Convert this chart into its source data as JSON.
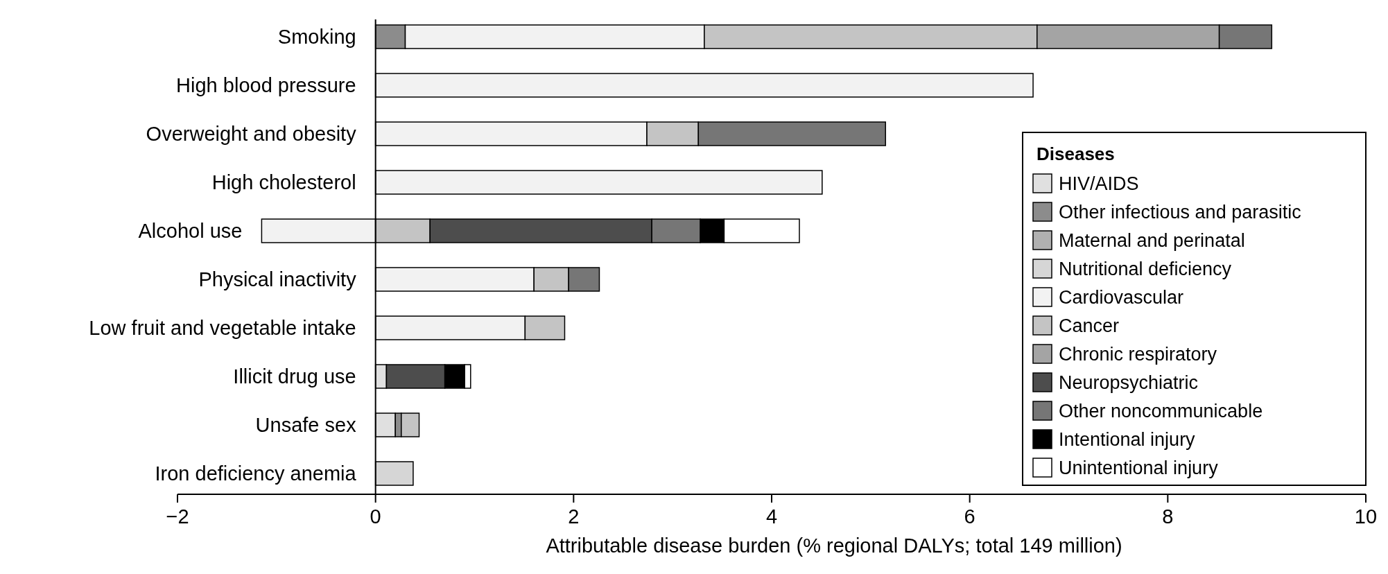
{
  "chart_data": {
    "type": "bar",
    "orientation": "horizontal",
    "stacked": true,
    "xlabel": "Attributable disease burden (% regional DALYs; total 149 million)",
    "categories": [
      "Smoking",
      "High blood pressure",
      "Overweight and obesity",
      "High cholesterol",
      "Alcohol use",
      "Physical inactivity",
      "Low fruit and vegetable intake",
      "Illicit drug use",
      "Unsafe sex",
      "Iron deficiency anemia"
    ],
    "xlim": [
      -2,
      10
    ],
    "xticks": [
      {
        "value": -2,
        "label": "−2"
      },
      0,
      2,
      4,
      6,
      8,
      10
    ],
    "legend": "right",
    "legend_title": "Diseases",
    "series": [
      {
        "name": "HIV/AIDS",
        "color": "#e0e0e0",
        "values": [
          null,
          null,
          null,
          null,
          null,
          null,
          null,
          0.11,
          0.2,
          null
        ]
      },
      {
        "name": "Other infectious and parasitic",
        "color": "#8c8c8c",
        "values": [
          0.3,
          null,
          null,
          null,
          null,
          null,
          null,
          null,
          0.06,
          null
        ]
      },
      {
        "name": "Maternal and perinatal",
        "color": "#b0b0b0",
        "values": [
          null,
          null,
          null,
          null,
          null,
          null,
          null,
          null,
          null,
          null
        ]
      },
      {
        "name": "Nutritional deficiency",
        "color": "#d6d6d6",
        "values": [
          null,
          null,
          null,
          null,
          null,
          null,
          null,
          null,
          null,
          0.38
        ]
      },
      {
        "name": "Cardiovascular",
        "color": "#f2f2f2",
        "values": [
          3.02,
          6.64,
          2.74,
          4.51,
          -1.15,
          1.6,
          1.51,
          null,
          null,
          null
        ]
      },
      {
        "name": "Cancer",
        "color": "#c4c4c4",
        "values": [
          3.36,
          null,
          0.52,
          null,
          0.55,
          0.35,
          0.4,
          null,
          0.18,
          null
        ]
      },
      {
        "name": "Chronic respiratory",
        "color": "#a4a4a4",
        "values": [
          1.84,
          null,
          null,
          null,
          null,
          null,
          null,
          null,
          null,
          null
        ]
      },
      {
        "name": "Neuropsychiatric",
        "color": "#4d4d4d",
        "values": [
          null,
          null,
          null,
          null,
          2.24,
          null,
          null,
          0.59,
          null,
          null
        ]
      },
      {
        "name": "Other noncommunicable",
        "color": "#767676",
        "values": [
          0.53,
          null,
          1.89,
          null,
          0.49,
          0.31,
          null,
          null,
          null,
          null
        ]
      },
      {
        "name": "Intentional injury",
        "color": "#000000",
        "values": [
          null,
          null,
          null,
          null,
          0.24,
          null,
          null,
          0.2,
          null,
          null
        ]
      },
      {
        "name": "Unintentional injury",
        "color": "#ffffff",
        "values": [
          null,
          null,
          null,
          null,
          0.76,
          null,
          null,
          0.06,
          null,
          null
        ]
      }
    ]
  }
}
